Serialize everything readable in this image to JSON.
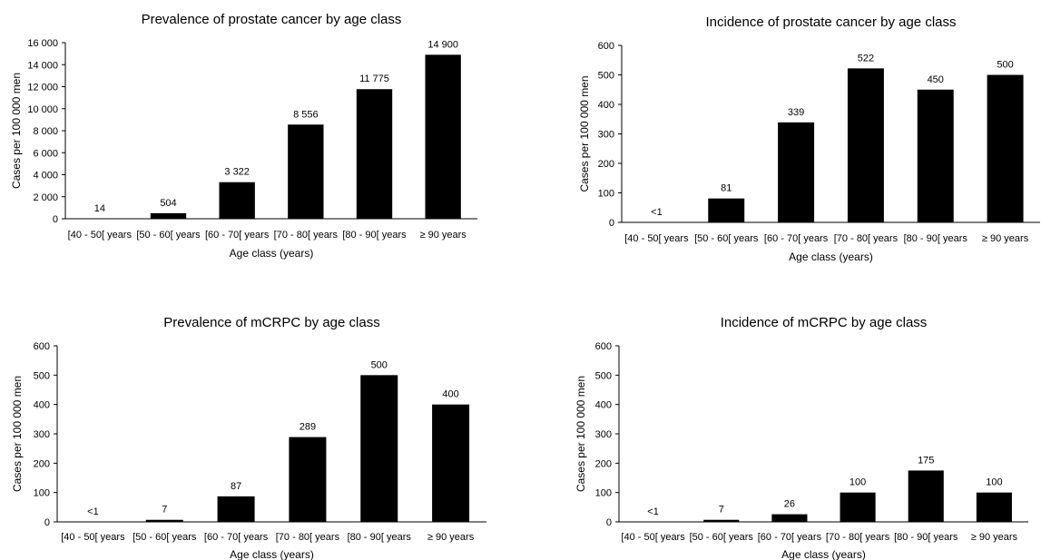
{
  "chart_data": [
    {
      "type": "bar",
      "title": "Prevalence of prostate cancer by age class",
      "xlabel": "Age class (years)",
      "ylabel": "Cases per 100 000 men",
      "ylim": [
        0,
        16000
      ],
      "yticks": [
        0,
        2000,
        4000,
        6000,
        8000,
        10000,
        12000,
        14000,
        16000
      ],
      "ytick_labels": [
        "0",
        "2 000",
        "4 000",
        "6 000",
        "8 000",
        "10 000",
        "12 000",
        "14 000",
        "16 000"
      ],
      "categories": [
        "[40 - 50[ years",
        "[50 - 60[ years",
        "[60 - 70[ years",
        "[70 - 80[ years",
        "[80 - 90[ years",
        "≥ 90 years"
      ],
      "values": [
        14,
        504,
        3322,
        8556,
        11775,
        14900
      ],
      "data_labels": [
        "14",
        "504",
        "3 322",
        "8 556",
        "11 775",
        "14 900"
      ],
      "grid": false,
      "bar_color": "#000000"
    },
    {
      "type": "bar",
      "title": "Incidence of prostate cancer by age class",
      "xlabel": "Age class (years)",
      "ylabel": "Cases per 100 000 men",
      "ylim": [
        0,
        600
      ],
      "yticks": [
        0,
        100,
        200,
        300,
        400,
        500,
        600
      ],
      "ytick_labels": [
        "0",
        "100",
        "200",
        "300",
        "400",
        "500",
        "600"
      ],
      "categories": [
        "[40 - 50[ years",
        "[50 - 60[ years",
        "[60 - 70[ years",
        "[70 - 80[ years",
        "[80 - 90[ years",
        "≥ 90 years"
      ],
      "values": [
        0,
        81,
        339,
        522,
        450,
        500
      ],
      "data_labels": [
        "<1",
        "81",
        "339",
        "522",
        "450",
        "500"
      ],
      "grid": false,
      "bar_color": "#000000"
    },
    {
      "type": "bar",
      "title": "Prevalence of mCRPC by age class",
      "xlabel": "Age class (years)",
      "ylabel": "Cases per 100 000 men",
      "ylim": [
        0,
        600
      ],
      "yticks": [
        0,
        100,
        200,
        300,
        400,
        500,
        600
      ],
      "ytick_labels": [
        "0",
        "100",
        "200",
        "300",
        "400",
        "500",
        "600"
      ],
      "categories": [
        "[40 - 50[ years",
        "[50 - 60[ years",
        "[60 - 70[ years",
        "[70 - 80[ years",
        "[80 - 90[ years",
        "≥ 90 years"
      ],
      "values": [
        0,
        7,
        87,
        289,
        500,
        400
      ],
      "data_labels": [
        "<1",
        "7",
        "87",
        "289",
        "500",
        "400"
      ],
      "grid": false,
      "bar_color": "#000000"
    },
    {
      "type": "bar",
      "title": "Incidence of mCRPC by age class",
      "xlabel": "Age class  (years)",
      "ylabel": "Cases per 100 000 men",
      "ylim": [
        0,
        600
      ],
      "yticks": [
        0,
        100,
        200,
        300,
        400,
        500,
        600
      ],
      "ytick_labels": [
        "0",
        "100",
        "200",
        "300",
        "400",
        "500",
        "600"
      ],
      "categories": [
        "[40 - 50[ years",
        "[50 - 60[ years",
        "[60 - 70[ years",
        "[70 - 80[ years",
        "[80 - 90[ years",
        "≥ 90 years"
      ],
      "values": [
        0,
        7,
        26,
        100,
        175,
        100
      ],
      "data_labels": [
        "<1",
        "7",
        "26",
        "100",
        "175",
        "100"
      ],
      "grid": false,
      "bar_color": "#000000"
    }
  ]
}
